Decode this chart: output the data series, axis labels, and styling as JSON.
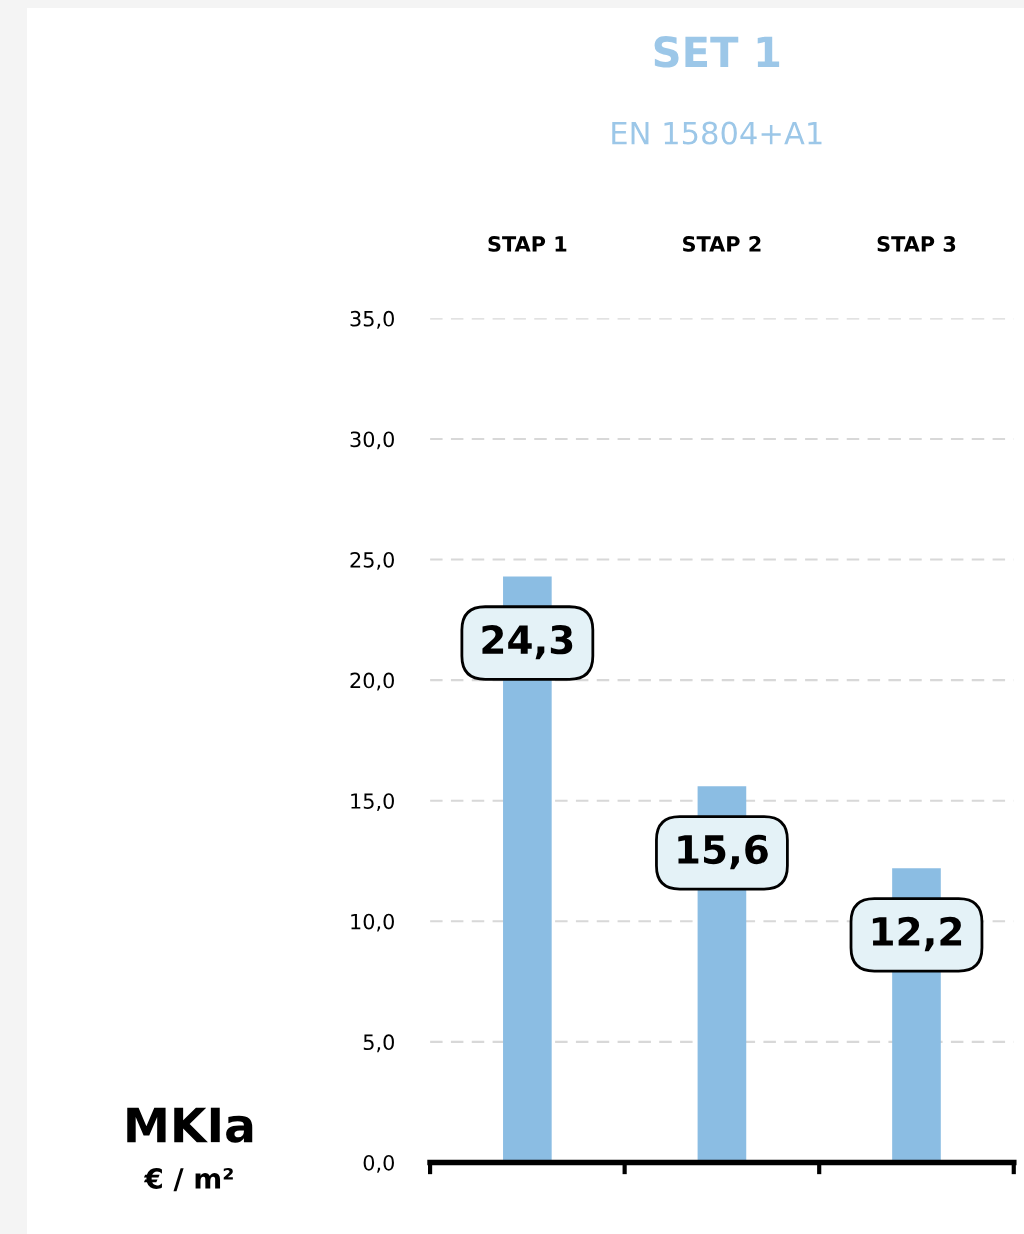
{
  "chart_data": {
    "type": "bar",
    "title": "SET 1",
    "subtitle": "EN 15804+A1",
    "ylabel": "MKIa",
    "annotations": [
      "€ / m²"
    ],
    "categories": [
      "STAP 1",
      "STAP 2",
      "STAP 3"
    ],
    "values": [
      24.3,
      15.6,
      12.2
    ],
    "color": "#8bbde3",
    "value_labels": [
      "24,3",
      "15,6",
      "12,2"
    ],
    "ylim": [
      0,
      35
    ],
    "yticks": [
      {
        "value": 0,
        "label": "0,0"
      },
      {
        "value": 5,
        "label": "5,0"
      },
      {
        "value": 10,
        "label": "10,0"
      },
      {
        "value": 15,
        "label": "15,0"
      },
      {
        "value": 20,
        "label": "20,0"
      },
      {
        "value": 25,
        "label": "25,0"
      },
      {
        "value": 30,
        "label": "30,0"
      },
      {
        "value": 35,
        "label": "35,0"
      }
    ],
    "grid": "y"
  }
}
